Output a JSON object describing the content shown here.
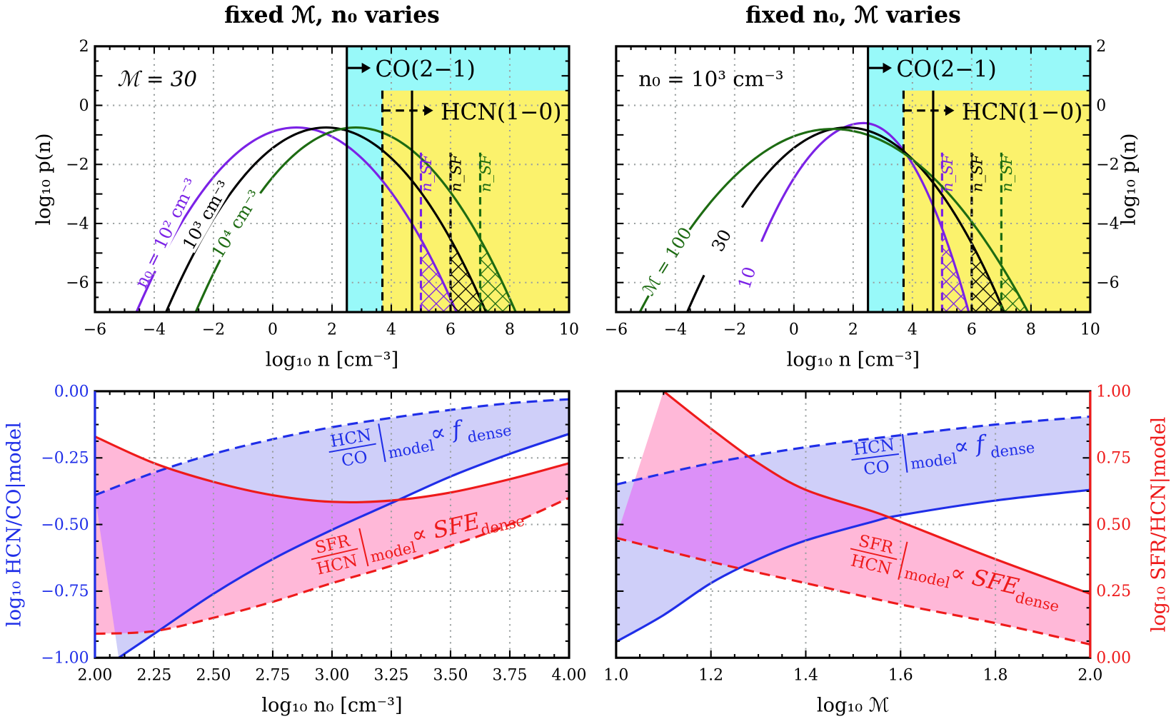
{
  "chart_data": [
    {
      "type": "line",
      "title": "fixed ℳ, n₀ varies",
      "xlabel": "log₁₀ n [cm⁻³]",
      "ylabel": "log₁₀ p(n)",
      "ylabel_side": "left",
      "xlim": [
        -6,
        10
      ],
      "ylim": [
        -7,
        2
      ],
      "xticks": [
        -6,
        -4,
        -2,
        0,
        2,
        4,
        6,
        8,
        10
      ],
      "xtick_labels": [
        "−6",
        "−4",
        "−2",
        "0",
        "2",
        "4",
        "6",
        "8",
        "10"
      ],
      "yticks": [
        -6,
        -4,
        -2,
        0,
        2
      ],
      "ytick_labels": [
        "−6",
        "−4",
        "−2",
        "0",
        "2"
      ],
      "grid": true,
      "annotation": "ℳ = 30",
      "regions": [
        {
          "label": "CO(2−1)",
          "x_from": 2.5,
          "y_to": 2,
          "color": "#98f9f9",
          "boundary": "solid"
        },
        {
          "label": "HCN(1−0)",
          "x_from": 3.7,
          "y_to": 0.5,
          "color": "#fbf26c",
          "boundary": "dashed"
        }
      ],
      "extra_vline": 4.7,
      "series": [
        {
          "name": "n₀ = 10² cm⁻³",
          "color": "#7b22e6",
          "peak": [
            0.8,
            -0.75
          ],
          "x_at_ymin": [
            -4.6,
            6.2
          ],
          "n_SF": 5.0,
          "n_SF_label": "n_SF"
        },
        {
          "name": "10³ cm⁻³",
          "color": "#000000",
          "peak": [
            1.8,
            -0.75
          ],
          "x_at_ymin": [
            -3.6,
            7.2
          ],
          "n_SF": 6.0,
          "n_SF_label": "n_SF"
        },
        {
          "name": "10⁴ cm⁻³",
          "color": "#1d6b12",
          "peak": [
            2.8,
            -0.75
          ],
          "x_at_ymin": [
            -2.6,
            8.2
          ],
          "n_SF": 7.0,
          "n_SF_label": "n_SF"
        }
      ]
    },
    {
      "type": "line",
      "title": "fixed n₀, ℳ varies",
      "xlabel": "log₁₀ n [cm⁻³]",
      "ylabel": "log₁₀ p(n)",
      "ylabel_side": "right",
      "xlim": [
        -6,
        10
      ],
      "ylim": [
        -7,
        2
      ],
      "xticks": [
        -6,
        -4,
        -2,
        0,
        2,
        4,
        6,
        8,
        10
      ],
      "xtick_labels": [
        "−6",
        "−4",
        "−2",
        "0",
        "2",
        "4",
        "6",
        "8",
        "10"
      ],
      "yticks": [
        -6,
        -4,
        -2,
        0,
        2
      ],
      "ytick_labels": [
        "−6",
        "−4",
        "−2",
        "0",
        "2"
      ],
      "grid": true,
      "annotation": "n₀ = 10³ cm⁻³",
      "regions": [
        {
          "label": "CO(2−1)",
          "x_from": 2.5,
          "y_to": 2,
          "color": "#98f9f9",
          "boundary": "solid"
        },
        {
          "label": "HCN(1−0)",
          "x_from": 3.7,
          "y_to": 0.5,
          "color": "#fbf26c",
          "boundary": "dashed"
        }
      ],
      "extra_vline": 4.7,
      "series": [
        {
          "name": "10",
          "color": "#7b22e6",
          "peak": [
            2.35,
            -0.6
          ],
          "x_at_ymin": [
            -2.0,
            5.9
          ],
          "n_SF": 5.0,
          "n_SF_label": "n_SF"
        },
        {
          "name": "30",
          "color": "#000000",
          "peak": [
            1.8,
            -0.75
          ],
          "x_at_ymin": [
            -3.6,
            7.1
          ],
          "n_SF": 6.0,
          "n_SF_label": "n_SF"
        },
        {
          "name": "ℳ = 100",
          "color": "#1d6b12",
          "peak": [
            1.3,
            -0.8
          ],
          "x_at_ymin": [
            -5.2,
            7.9
          ],
          "n_SF": 7.0,
          "n_SF_label": "n_SF"
        }
      ]
    },
    {
      "type": "area",
      "xlabel": "log₁₀ n₀ [cm⁻³]",
      "ylabel": "log₁₀ HCN/CO|model",
      "ylabel_color": "#1f2ee8",
      "xlim": [
        2.0,
        4.0
      ],
      "ylim": [
        -1.0,
        0.0
      ],
      "xticks": [
        2.0,
        2.25,
        2.5,
        2.75,
        3.0,
        3.25,
        3.5,
        3.75,
        4.0
      ],
      "xtick_labels": [
        "2.00",
        "2.25",
        "2.50",
        "2.75",
        "3.00",
        "3.25",
        "3.50",
        "3.75",
        "4.00"
      ],
      "yticks": [
        -1.0,
        -0.75,
        -0.5,
        -0.25,
        0.0
      ],
      "ytick_labels": [
        "−1.00",
        "−0.75",
        "−0.50",
        "−0.25",
        "0.00"
      ],
      "grid": true,
      "bands": [
        {
          "label": {
            "num": "HCN",
            "den": "CO",
            "sub": "model",
            "rel": "∝ f",
            "relsub": "dense"
          },
          "color": "#1f2ee8",
          "fill": "#cfcff9",
          "upper_dashed": [
            [
              2.0,
              -0.39
            ],
            [
              2.25,
              -0.305
            ],
            [
              2.5,
              -0.235
            ],
            [
              2.75,
              -0.18
            ],
            [
              3.0,
              -0.135
            ],
            [
              3.25,
              -0.1
            ],
            [
              3.5,
              -0.07
            ],
            [
              3.75,
              -0.045
            ],
            [
              4.0,
              -0.03
            ]
          ],
          "lower_solid": [
            [
              2.1,
              -1.0
            ],
            [
              2.25,
              -0.91
            ],
            [
              2.5,
              -0.76
            ],
            [
              2.75,
              -0.63
            ],
            [
              3.0,
              -0.52
            ],
            [
              3.25,
              -0.42
            ],
            [
              3.5,
              -0.32
            ],
            [
              3.75,
              -0.235
            ],
            [
              4.0,
              -0.16
            ]
          ]
        },
        {
          "label": {
            "num": "SFR",
            "den": "HCN",
            "sub": "model",
            "rel": "∝ SFE",
            "relsub": "dense"
          },
          "color": "#ee1a1a",
          "fill": "#ffb8d8",
          "upper_solid": [
            [
              2.0,
              -0.17
            ],
            [
              2.25,
              -0.27
            ],
            [
              2.5,
              -0.34
            ],
            [
              2.75,
              -0.39
            ],
            [
              3.0,
              -0.415
            ],
            [
              3.25,
              -0.41
            ],
            [
              3.5,
              -0.38
            ],
            [
              3.75,
              -0.33
            ],
            [
              4.0,
              -0.27
            ]
          ],
          "lower_dashed": [
            [
              2.0,
              -0.91
            ],
            [
              2.25,
              -0.9
            ],
            [
              2.5,
              -0.85
            ],
            [
              2.75,
              -0.79
            ],
            [
              3.0,
              -0.72
            ],
            [
              3.25,
              -0.655
            ],
            [
              3.5,
              -0.58
            ],
            [
              3.75,
              -0.5
            ],
            [
              4.0,
              -0.4
            ]
          ]
        }
      ],
      "overlap_fill": "#dc90f8"
    },
    {
      "type": "area",
      "xlabel": "log₁₀ ℳ",
      "ylabel": "log₁₀ SFR/HCN|model",
      "ylabel_color": "#ee1a1a",
      "ylabel_side": "right",
      "xlim": [
        1.0,
        2.0
      ],
      "ylim": [
        0.0,
        1.0
      ],
      "left_ylim": [
        -1.0,
        0.0
      ],
      "xticks": [
        1.0,
        1.2,
        1.4,
        1.6,
        1.8,
        2.0
      ],
      "xtick_labels": [
        "1.0",
        "1.2",
        "1.4",
        "1.6",
        "1.8",
        "2.0"
      ],
      "yticks": [
        0.0,
        0.25,
        0.5,
        0.75,
        1.0
      ],
      "ytick_labels": [
        "0.00",
        "0.25",
        "0.50",
        "0.75",
        "1.00"
      ],
      "grid": true,
      "bands": [
        {
          "label": {
            "num": "HCN",
            "den": "CO",
            "sub": "model",
            "rel": "∝ f",
            "relsub": "dense"
          },
          "color": "#1f2ee8",
          "fill": "#cfcff9",
          "axis": "left",
          "upper_dashed": [
            [
              1.0,
              -0.35
            ],
            [
              1.2,
              -0.27
            ],
            [
              1.4,
              -0.21
            ],
            [
              1.6,
              -0.165
            ],
            [
              1.8,
              -0.125
            ],
            [
              2.0,
              -0.095
            ]
          ],
          "lower_solid": [
            [
              1.0,
              -0.94
            ],
            [
              1.1,
              -0.84
            ],
            [
              1.2,
              -0.72
            ],
            [
              1.3,
              -0.63
            ],
            [
              1.4,
              -0.56
            ],
            [
              1.54,
              -0.49
            ],
            [
              1.6,
              -0.465
            ],
            [
              1.8,
              -0.41
            ],
            [
              2.0,
              -0.37
            ]
          ]
        },
        {
          "label": {
            "num": "SFR",
            "den": "HCN",
            "sub": "model",
            "rel": "∝ SFE",
            "relsub": "dense"
          },
          "color": "#ee1a1a",
          "fill": "#ffb8d8",
          "axis": "right",
          "upper_solid": [
            [
              1.1,
              1.0
            ],
            [
              1.2,
              0.86
            ],
            [
              1.3,
              0.73
            ],
            [
              1.4,
              0.63
            ],
            [
              1.54,
              0.55
            ],
            [
              1.6,
              0.51
            ],
            [
              1.8,
              0.37
            ],
            [
              2.0,
              0.24
            ]
          ],
          "lower_dashed": [
            [
              1.0,
              0.45
            ],
            [
              1.2,
              0.36
            ],
            [
              1.4,
              0.28
            ],
            [
              1.6,
              0.2
            ],
            [
              1.8,
              0.13
            ],
            [
              2.0,
              0.05
            ]
          ]
        }
      ],
      "overlap_fill": "#dc90f8"
    }
  ]
}
